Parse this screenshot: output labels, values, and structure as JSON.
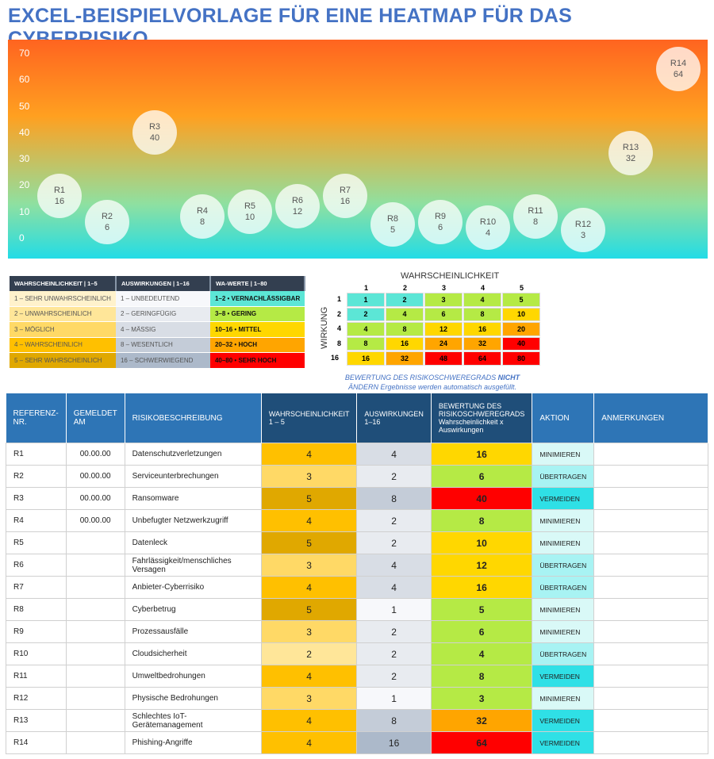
{
  "title": "EXCEL-BEISPIELVORLAGE FÜR EINE HEATMAP FÜR DAS CYBERRISIKO",
  "chart_data": {
    "type": "scatter",
    "y_ticks": [
      0,
      10,
      20,
      30,
      40,
      50,
      60,
      70
    ],
    "ylim": [
      0,
      70
    ],
    "gradient": [
      "#ff6420",
      "#22dce6"
    ],
    "points": [
      {
        "label": "R1",
        "value": 16
      },
      {
        "label": "R2",
        "value": 6
      },
      {
        "label": "R3",
        "value": 40
      },
      {
        "label": "R4",
        "value": 8
      },
      {
        "label": "R5",
        "value": 10
      },
      {
        "label": "R6",
        "value": 12
      },
      {
        "label": "R7",
        "value": 16
      },
      {
        "label": "R8",
        "value": 5
      },
      {
        "label": "R9",
        "value": 6
      },
      {
        "label": "R10",
        "value": 4
      },
      {
        "label": "R11",
        "value": 8
      },
      {
        "label": "R12",
        "value": 3
      },
      {
        "label": "R13",
        "value": 32
      },
      {
        "label": "R14",
        "value": 64
      }
    ]
  },
  "legend": {
    "headers": [
      "WAHRSCHEINLICHKEIT | 1–5",
      "AUSWIRKUNGEN | 1–16",
      "WA-WERTE | 1–80"
    ],
    "rows": [
      [
        "1 – SEHR UNWAHRSCHEINLICH",
        "1 – UNBEDEUTEND",
        "1–2 • VERNACHLÄSSIGBAR"
      ],
      [
        "2 – UNWAHRSCHEINLICH",
        "2 – GERINGFÜGIG",
        "3–8 • GERING"
      ],
      [
        "3 – MÖGLICH",
        "4 – MÄSSIG",
        "10–16 • MITTEL"
      ],
      [
        "4 – WAHRSCHEINLICH",
        "8 – WESENTLICH",
        "20–32 • HOCH"
      ],
      [
        "5 – SEHR WAHRSCHEINLICH",
        "16 – SCHWERWIEGEND",
        "40–80 • SEHR HOCH"
      ]
    ],
    "colors": [
      [
        "#fff2cc",
        "#f7f8fb",
        "#5ce6d6"
      ],
      [
        "#ffe699",
        "#e8ebf0",
        "#b5ea45"
      ],
      [
        "#ffd966",
        "#d8dde5",
        "#ffd700"
      ],
      [
        "#ffc000",
        "#c4ccd8",
        "#ffa500"
      ],
      [
        "#e0a800",
        "#acb9ca",
        "#ff0000"
      ]
    ]
  },
  "matrix": {
    "title": "WAHRSCHEINLICHKEIT",
    "side": "WIRKUNG",
    "cols": [
      1,
      2,
      3,
      4,
      5
    ],
    "rows": [
      1,
      2,
      4,
      8,
      16
    ]
  },
  "note": {
    "a": "BEWERTUNG DES RISIKOSCHWEREGRADS ",
    "b": "NICHT",
    "c": "ÄNDERN Ergebnisse werden automatisch ausgefüllt."
  },
  "table": {
    "headers": [
      "REFERENZ-NR.",
      "GEMELDET AM",
      "RISIKOBESCHREIBUNG",
      "WAHRSCHEINLICHKEIT 1 – 5",
      "AUSWIRKUNGEN 1–16",
      "BEWERTUNG DES RISIKOSCHWEREGRADS Wahrscheinlichkeit x Auswirkungen",
      "AKTION",
      "ANMERKUNGEN"
    ],
    "rows": [
      [
        "R1",
        "00.00.00",
        "Datenschutzverletzungen",
        4,
        4,
        16,
        "MINIMIEREN",
        ""
      ],
      [
        "R2",
        "00.00.00",
        "Serviceunterbrechungen",
        3,
        2,
        6,
        "ÜBERTRAGEN",
        ""
      ],
      [
        "R3",
        "00.00.00",
        "Ransomware",
        5,
        8,
        40,
        "VERMEIDEN",
        ""
      ],
      [
        "R4",
        "00.00.00",
        "Unbefugter Netzwerkzugriff",
        4,
        2,
        8,
        "MINIMIEREN",
        ""
      ],
      [
        "R5",
        "",
        "Datenleck",
        5,
        2,
        10,
        "MINIMIEREN",
        ""
      ],
      [
        "R6",
        "",
        "Fahrlässigkeit/menschliches Versagen",
        3,
        4,
        12,
        "ÜBERTRAGEN",
        ""
      ],
      [
        "R7",
        "",
        "Anbieter-Cyberrisiko",
        4,
        4,
        16,
        "ÜBERTRAGEN",
        ""
      ],
      [
        "R8",
        "",
        "Cyberbetrug",
        5,
        1,
        5,
        "MINIMIEREN",
        ""
      ],
      [
        "R9",
        "",
        "Prozessausfälle",
        3,
        2,
        6,
        "MINIMIEREN",
        ""
      ],
      [
        "R10",
        "",
        "Cloudsicherheit",
        2,
        2,
        4,
        "ÜBERTRAGEN",
        ""
      ],
      [
        "R11",
        "",
        "Umweltbedrohungen",
        4,
        2,
        8,
        "VERMEIDEN",
        ""
      ],
      [
        "R12",
        "",
        "Physische Bedrohungen",
        3,
        1,
        3,
        "MINIMIEREN",
        ""
      ],
      [
        "R13",
        "",
        "Schlechtes IoT-Gerätemanagement",
        4,
        8,
        32,
        "VERMEIDEN",
        ""
      ],
      [
        "R14",
        "",
        "Phishing-Angriffe",
        4,
        16,
        64,
        "VERMEIDEN",
        ""
      ]
    ]
  },
  "action_colors": {
    "MINIMIEREN": "#d9f9f7",
    "ÜBERTRAGEN": "#a8f3f3",
    "VERMEIDEN": "#2fe0e6"
  }
}
